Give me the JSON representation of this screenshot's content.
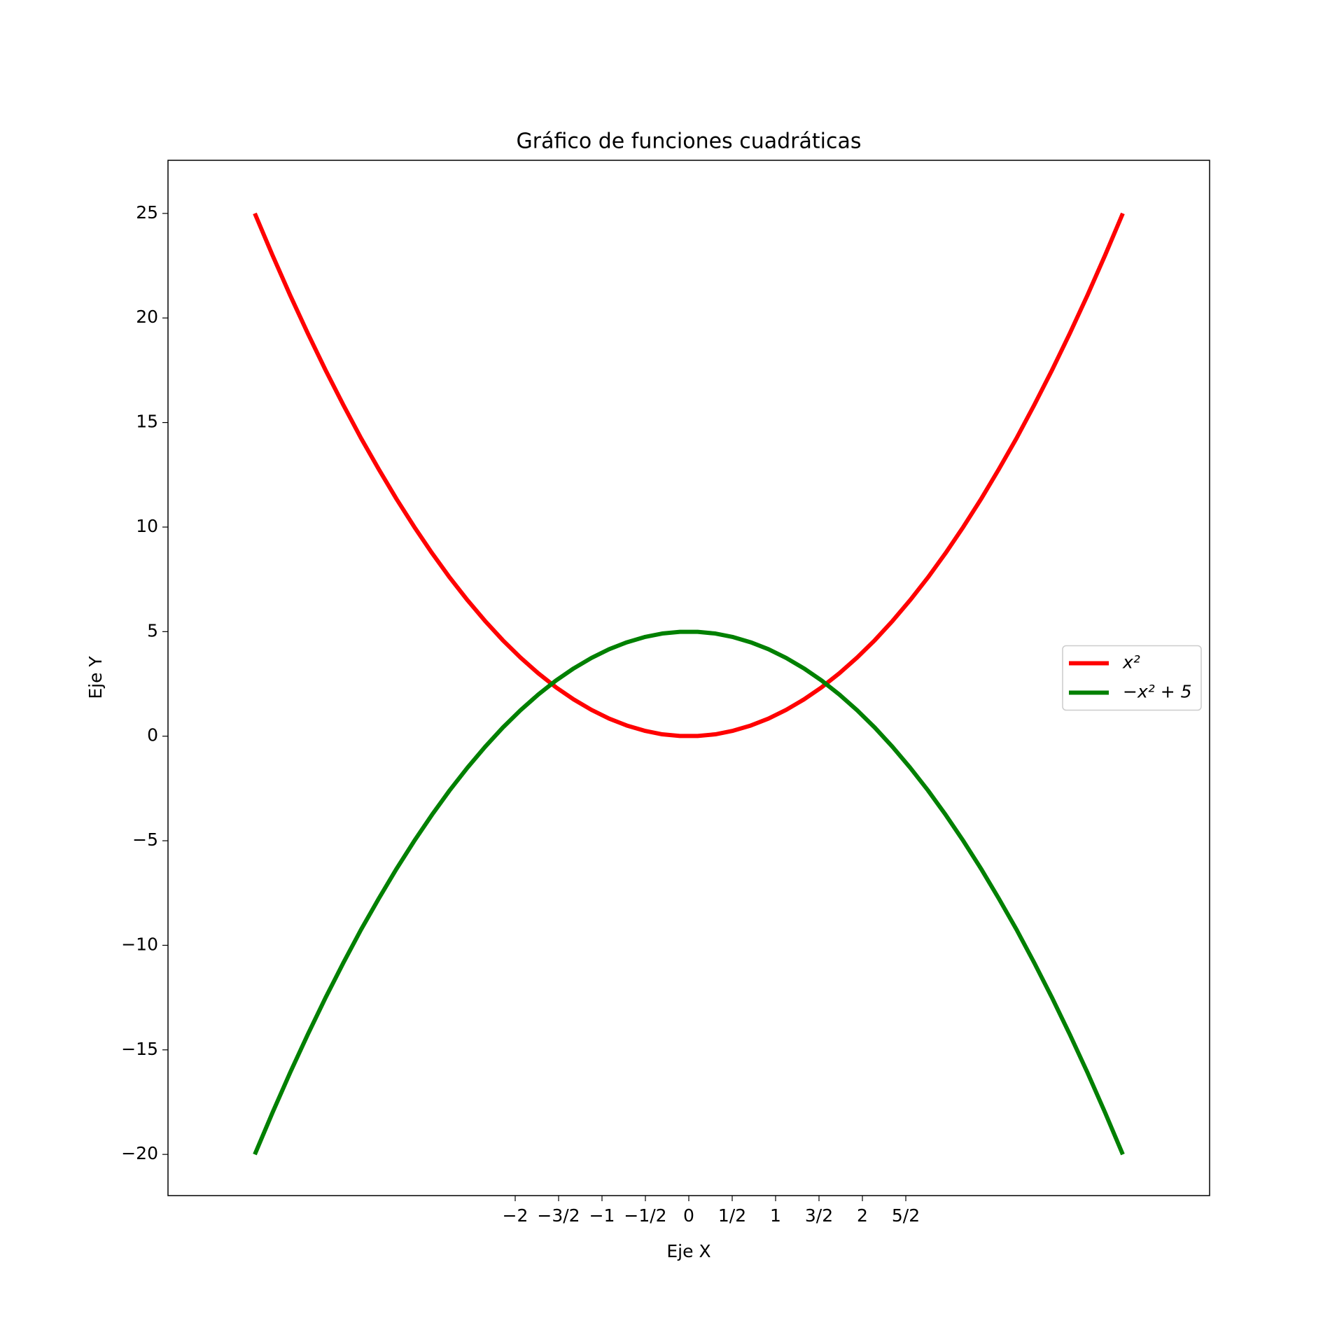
{
  "chart_data": {
    "type": "line",
    "title": "Gráfico de funciones cuadráticas",
    "x_label": "Eje X",
    "y_label": "Eje Y",
    "x": [
      -5.0,
      -4.796,
      -4.592,
      -4.388,
      -4.184,
      -3.98,
      -3.776,
      -3.571,
      -3.367,
      -3.163,
      -2.959,
      -2.755,
      -2.551,
      -2.347,
      -2.143,
      -1.939,
      -1.735,
      -1.531,
      -1.327,
      -1.122,
      -0.918,
      -0.714,
      -0.51,
      -0.306,
      -0.102,
      0.102,
      0.306,
      0.51,
      0.714,
      0.918,
      1.122,
      1.327,
      1.531,
      1.735,
      1.939,
      2.143,
      2.347,
      2.551,
      2.755,
      2.959,
      3.163,
      3.367,
      3.571,
      3.776,
      3.98,
      4.184,
      4.388,
      4.592,
      4.796,
      5.0
    ],
    "series": [
      {
        "name": "x²",
        "color": "#ff0000",
        "values": [
          25.0,
          23.0,
          21.08,
          19.25,
          17.5,
          15.84,
          14.25,
          12.76,
          11.34,
          10.01,
          8.76,
          7.59,
          6.51,
          5.51,
          4.59,
          3.76,
          3.01,
          2.34,
          1.76,
          1.26,
          0.84,
          0.51,
          0.26,
          0.09,
          0.01,
          0.01,
          0.09,
          0.26,
          0.51,
          0.84,
          1.26,
          1.76,
          2.34,
          3.01,
          3.76,
          4.59,
          5.51,
          6.51,
          7.59,
          8.76,
          10.01,
          11.34,
          12.76,
          14.25,
          15.84,
          17.5,
          19.25,
          21.08,
          23.0,
          25.0
        ]
      },
      {
        "name": "−x² + 5",
        "color": "#008000",
        "values": [
          -20.0,
          -18.0,
          -16.08,
          -14.25,
          -12.5,
          -10.84,
          -9.25,
          -7.76,
          -6.34,
          -5.01,
          -3.76,
          -2.59,
          -1.51,
          -0.51,
          0.41,
          1.24,
          1.99,
          2.66,
          3.24,
          3.74,
          4.16,
          4.49,
          4.74,
          4.91,
          4.99,
          4.99,
          4.91,
          4.74,
          4.49,
          4.16,
          3.74,
          3.24,
          2.66,
          1.99,
          1.24,
          0.41,
          -0.51,
          -1.51,
          -2.59,
          -3.76,
          -5.01,
          -6.34,
          -7.76,
          -9.25,
          -10.84,
          -12.5,
          -14.25,
          -16.08,
          -18.0,
          -20.0
        ]
      }
    ],
    "xlim": [
      -6,
      6
    ],
    "ylim": [
      -21.97,
      27.54
    ],
    "xticks": [
      {
        "value": -2,
        "label": "−2"
      },
      {
        "value": -1.5,
        "label": "−3/2"
      },
      {
        "value": -1,
        "label": "−1"
      },
      {
        "value": -0.5,
        "label": "−1/2"
      },
      0,
      {
        "value": 0.5,
        "label": "1/2"
      },
      1,
      {
        "value": 1.5,
        "label": "3/2"
      },
      2,
      {
        "value": 2.5,
        "label": "5/2"
      }
    ],
    "yticks": [
      {
        "value": -20,
        "label": "−20"
      },
      {
        "value": -15,
        "label": "−15"
      },
      {
        "value": -10,
        "label": "−10"
      },
      {
        "value": -5,
        "label": "−5"
      },
      0,
      5,
      10,
      15,
      20,
      25
    ],
    "grid": false,
    "legend": "center right"
  }
}
